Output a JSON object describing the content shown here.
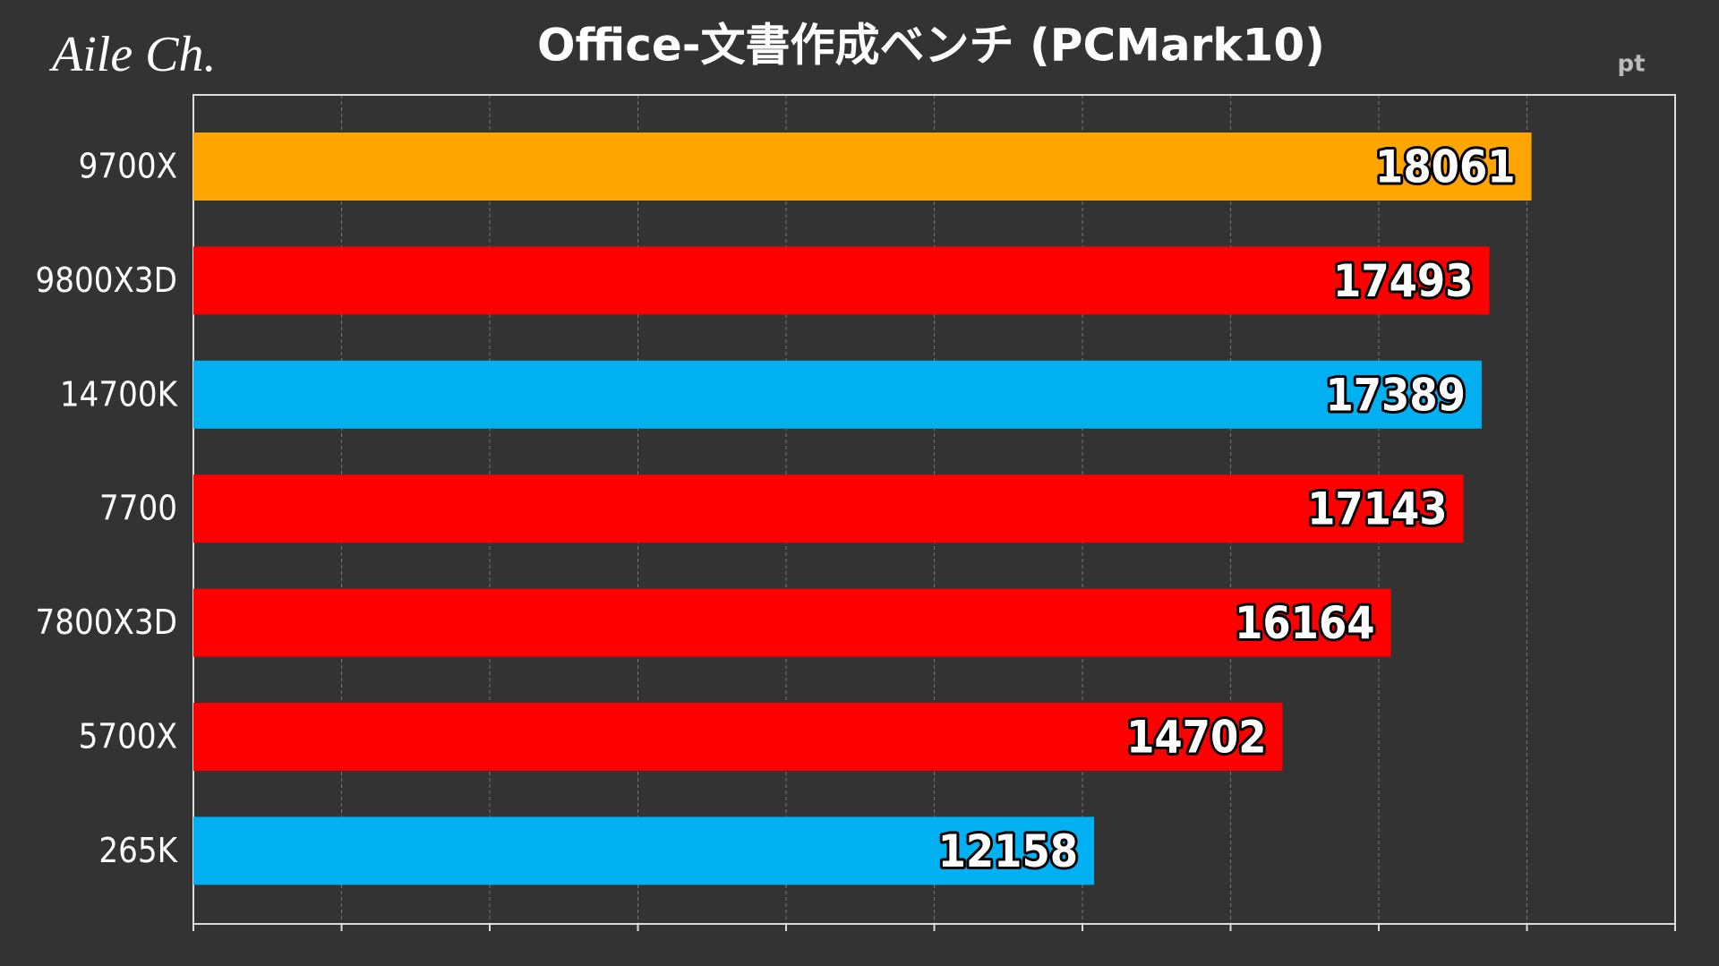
{
  "chart_data": {
    "type": "bar",
    "orientation": "horizontal",
    "title": "Office-文書作成ベンチ (PCMark10)",
    "logo": "Aile Ch.",
    "unit_label": "pt",
    "categories": [
      "9700X",
      "9800X3D",
      "14700K",
      "7700",
      "7800X3D",
      "5700X",
      "265K"
    ],
    "values": [
      18061,
      17493,
      17389,
      17143,
      16164,
      14702,
      12158
    ],
    "colors": [
      "#ffa500",
      "#ff0000",
      "#00b0f0",
      "#ff0000",
      "#ff0000",
      "#ff0000",
      "#00b0f0"
    ],
    "xlim": [
      0,
      20000
    ],
    "xticks": [
      0,
      2000,
      4000,
      6000,
      8000,
      10000,
      12000,
      14000,
      16000,
      18000,
      20000
    ],
    "grid": true
  }
}
